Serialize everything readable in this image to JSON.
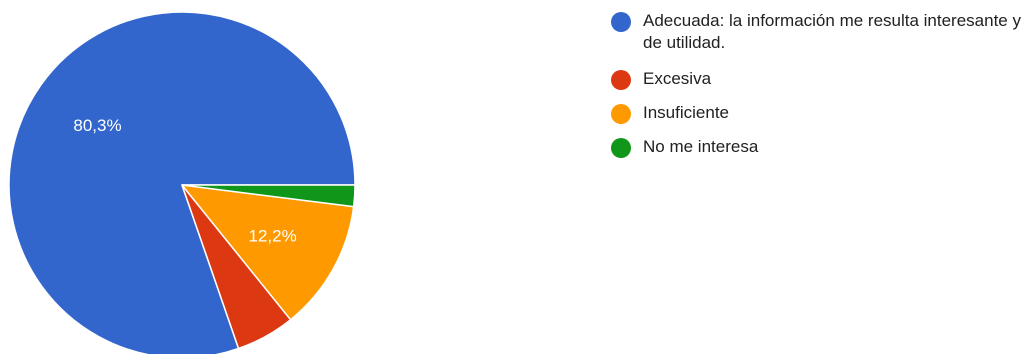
{
  "chart_data": {
    "type": "pie",
    "slices": [
      {
        "label": "Adecuada: la información me resulta interesante y de utilidad.",
        "value": 80.3,
        "color": "#3366cc",
        "data_label": "80,3%"
      },
      {
        "label": "Excesiva",
        "value": 5.5,
        "color": "#dc3912",
        "data_label": ""
      },
      {
        "label": "Insuficiente",
        "value": 12.2,
        "color": "#ff9900",
        "data_label": "12,2%"
      },
      {
        "label": "No me interesa",
        "value": 2.0,
        "color": "#109618",
        "data_label": ""
      }
    ],
    "start_angle_deg": 0,
    "direction": "counterclockwise",
    "legend_position": "right"
  }
}
